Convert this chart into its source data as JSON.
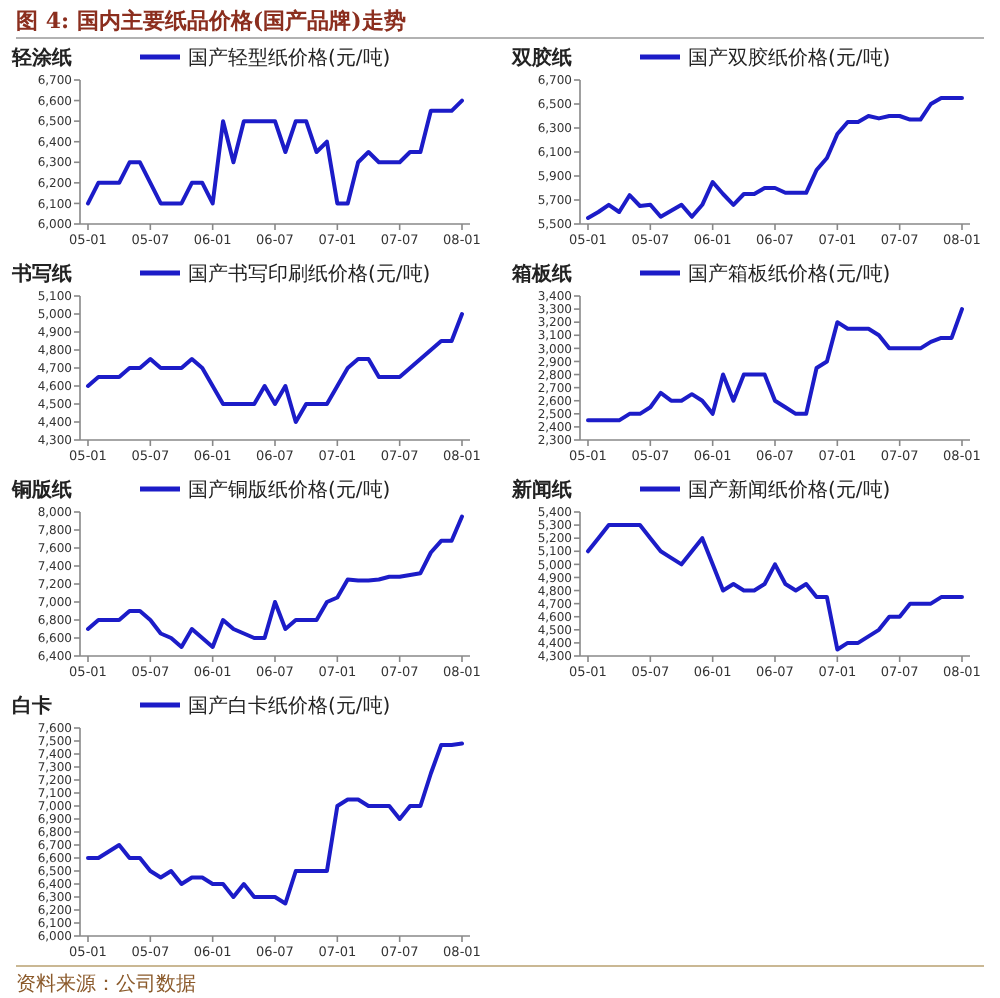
{
  "chart_data": [
    {
      "type": "other",
      "title": "图 4: 国内主要纸品价格(国产品牌)走势",
      "annotations": [
        "资料来源：公司数据"
      ]
    },
    {
      "type": "line",
      "title": "轻涂纸",
      "legend": "top",
      "categories": [
        "05-01",
        null,
        null,
        null,
        null,
        null,
        "05-07",
        null,
        null,
        null,
        null,
        null,
        "06-01",
        null,
        null,
        null,
        null,
        null,
        "06-07",
        null,
        null,
        null,
        null,
        null,
        "07-01",
        null,
        null,
        null,
        null,
        null,
        "07-07",
        null,
        null,
        null,
        null,
        null,
        "08-01"
      ],
      "series": [
        {
          "name": "国产轻型纸价格(元/吨)",
          "color": "#1c1cc8",
          "values": [
            6100,
            6200,
            6200,
            6200,
            6300,
            6300,
            6200,
            6100,
            6100,
            6100,
            6200,
            6200,
            6100,
            6500,
            6300,
            6500,
            6500,
            6500,
            6500,
            6350,
            6500,
            6500,
            6350,
            6400,
            6100,
            6100,
            6300,
            6350,
            6300,
            6300,
            6300,
            6350,
            6350,
            6550,
            6550,
            6550,
            6600
          ]
        }
      ],
      "ylim": [
        6000,
        6700
      ],
      "yticks": [
        {
          "value": 6000,
          "label": "6,000"
        },
        {
          "value": 6100,
          "label": "6,100"
        },
        {
          "value": 6200,
          "label": "6,200"
        },
        {
          "value": 6300,
          "label": "6,300"
        },
        {
          "value": 6400,
          "label": "6,400"
        },
        {
          "value": 6500,
          "label": "6,500"
        },
        {
          "value": 6600,
          "label": "6,600"
        },
        {
          "value": 6700,
          "label": "6,700"
        }
      ]
    },
    {
      "type": "line",
      "title": "双胶纸",
      "legend": "top",
      "categories": [
        "05-01",
        null,
        null,
        null,
        null,
        null,
        "05-07",
        null,
        null,
        null,
        null,
        null,
        "06-01",
        null,
        null,
        null,
        null,
        null,
        "06-07",
        null,
        null,
        null,
        null,
        null,
        "07-01",
        null,
        null,
        null,
        null,
        null,
        "07-07",
        null,
        null,
        null,
        null,
        null,
        "08-01"
      ],
      "series": [
        {
          "name": "国产双胶纸价格(元/吨)",
          "color": "#1c1cc8",
          "values": [
            5550,
            5600,
            5660,
            5600,
            5740,
            5650,
            5660,
            5560,
            5610,
            5660,
            5560,
            5660,
            5850,
            5750,
            5660,
            5750,
            5750,
            5800,
            5800,
            5760,
            5760,
            5760,
            5950,
            6050,
            6250,
            6350,
            6350,
            6400,
            6380,
            6400,
            6400,
            6370,
            6370,
            6500,
            6550,
            6550,
            6550
          ]
        }
      ],
      "ylim": [
        5500,
        6700
      ],
      "yticks": [
        {
          "value": 5500,
          "label": "5,500"
        },
        {
          "value": 5700,
          "label": "5,700"
        },
        {
          "value": 5900,
          "label": "5,900"
        },
        {
          "value": 6100,
          "label": "6,100"
        },
        {
          "value": 6300,
          "label": "6,300"
        },
        {
          "value": 6500,
          "label": "6,500"
        },
        {
          "value": 6700,
          "label": "6,700"
        }
      ]
    },
    {
      "type": "line",
      "title": "书写纸",
      "legend": "top",
      "categories": [
        "05-01",
        null,
        null,
        null,
        null,
        null,
        "05-07",
        null,
        null,
        null,
        null,
        null,
        "06-01",
        null,
        null,
        null,
        null,
        null,
        "06-07",
        null,
        null,
        null,
        null,
        null,
        "07-01",
        null,
        null,
        null,
        null,
        null,
        "07-07",
        null,
        null,
        null,
        null,
        null,
        "08-01"
      ],
      "series": [
        {
          "name": "国产书写印刷纸价格(元/吨)",
          "color": "#1c1cc8",
          "values": [
            4600,
            4650,
            4650,
            4650,
            4700,
            4700,
            4750,
            4700,
            4700,
            4700,
            4750,
            4700,
            4600,
            4500,
            4500,
            4500,
            4500,
            4600,
            4500,
            4600,
            4400,
            4500,
            4500,
            4500,
            4600,
            4700,
            4750,
            4750,
            4650,
            4650,
            4650,
            4700,
            4750,
            4800,
            4850,
            4850,
            5000
          ]
        }
      ],
      "ylim": [
        4300,
        5100
      ],
      "yticks": [
        {
          "value": 4300,
          "label": "4,300"
        },
        {
          "value": 4400,
          "label": "4,400"
        },
        {
          "value": 4500,
          "label": "4,500"
        },
        {
          "value": 4600,
          "label": "4,600"
        },
        {
          "value": 4700,
          "label": "4,700"
        },
        {
          "value": 4800,
          "label": "4,800"
        },
        {
          "value": 4900,
          "label": "4,900"
        },
        {
          "value": 5000,
          "label": "5,000"
        },
        {
          "value": 5100,
          "label": "5,100"
        }
      ]
    },
    {
      "type": "line",
      "title": "箱板纸",
      "legend": "top",
      "categories": [
        "05-01",
        null,
        null,
        null,
        null,
        null,
        "05-07",
        null,
        null,
        null,
        null,
        null,
        "06-01",
        null,
        null,
        null,
        null,
        null,
        "06-07",
        null,
        null,
        null,
        null,
        null,
        "07-01",
        null,
        null,
        null,
        null,
        null,
        "07-07",
        null,
        null,
        null,
        null,
        null,
        "08-01"
      ],
      "series": [
        {
          "name": "国产箱板纸价格(元/吨)",
          "color": "#1c1cc8",
          "values": [
            2450,
            2450,
            2450,
            2450,
            2500,
            2500,
            2550,
            2660,
            2600,
            2600,
            2650,
            2600,
            2500,
            2800,
            2600,
            2800,
            2800,
            2800,
            2600,
            2550,
            2500,
            2500,
            2850,
            2900,
            3200,
            3150,
            3150,
            3150,
            3100,
            3000,
            3000,
            3000,
            3000,
            3050,
            3080,
            3080,
            3300
          ]
        }
      ],
      "ylim": [
        2300,
        3400
      ],
      "yticks": [
        {
          "value": 2300,
          "label": "2,300"
        },
        {
          "value": 2400,
          "label": "2,400"
        },
        {
          "value": 2500,
          "label": "2,500"
        },
        {
          "value": 2600,
          "label": "2,600"
        },
        {
          "value": 2700,
          "label": "2,700"
        },
        {
          "value": 2800,
          "label": "2,800"
        },
        {
          "value": 2900,
          "label": "2,900"
        },
        {
          "value": 3000,
          "label": "3,000"
        },
        {
          "value": 3100,
          "label": "3,100"
        },
        {
          "value": 3200,
          "label": "3,200"
        },
        {
          "value": 3300,
          "label": "3,300"
        },
        {
          "value": 3400,
          "label": "3,400"
        }
      ]
    },
    {
      "type": "line",
      "title": "铜版纸",
      "legend": "top",
      "categories": [
        "05-01",
        null,
        null,
        null,
        null,
        null,
        "05-07",
        null,
        null,
        null,
        null,
        null,
        "06-01",
        null,
        null,
        null,
        null,
        null,
        "06-07",
        null,
        null,
        null,
        null,
        null,
        "07-01",
        null,
        null,
        null,
        null,
        null,
        "07-07",
        null,
        null,
        null,
        null,
        null,
        "08-01"
      ],
      "series": [
        {
          "name": "国产铜版纸价格(元/吨)",
          "color": "#1c1cc8",
          "values": [
            6700,
            6800,
            6800,
            6800,
            6900,
            6900,
            6800,
            6650,
            6600,
            6500,
            6700,
            6600,
            6500,
            6800,
            6700,
            6650,
            6600,
            6600,
            7000,
            6700,
            6800,
            6800,
            6800,
            7000,
            7050,
            7250,
            7240,
            7240,
            7250,
            7280,
            7280,
            7300,
            7320,
            7550,
            7680,
            7680,
            7950
          ]
        }
      ],
      "ylim": [
        6400,
        8000
      ],
      "yticks": [
        {
          "value": 6400,
          "label": "6,400"
        },
        {
          "value": 6600,
          "label": "6,600"
        },
        {
          "value": 6800,
          "label": "6,800"
        },
        {
          "value": 7000,
          "label": "7,000"
        },
        {
          "value": 7200,
          "label": "7,200"
        },
        {
          "value": 7400,
          "label": "7,400"
        },
        {
          "value": 7600,
          "label": "7,600"
        },
        {
          "value": 7800,
          "label": "7,800"
        },
        {
          "value": 8000,
          "label": "8,000"
        }
      ]
    },
    {
      "type": "line",
      "title": "新闻纸",
      "legend": "top",
      "categories": [
        "05-01",
        null,
        null,
        null,
        null,
        null,
        "05-07",
        null,
        null,
        null,
        null,
        null,
        "06-01",
        null,
        null,
        null,
        null,
        null,
        "06-07",
        null,
        null,
        null,
        null,
        null,
        "07-01",
        null,
        null,
        null,
        null,
        null,
        "07-07",
        null,
        null,
        null,
        null,
        null,
        "08-01"
      ],
      "series": [
        {
          "name": "国产新闻纸价格(元/吨)",
          "color": "#1c1cc8",
          "values": [
            5100,
            5200,
            5300,
            5300,
            5300,
            5300,
            5200,
            5100,
            5050,
            5000,
            5100,
            5200,
            5000,
            4800,
            4850,
            4800,
            4800,
            4850,
            5000,
            4850,
            4800,
            4850,
            4750,
            4750,
            4350,
            4400,
            4400,
            4450,
            4500,
            4600,
            4600,
            4700,
            4700,
            4700,
            4750,
            4750,
            4750
          ]
        }
      ],
      "ylim": [
        4300,
        5400
      ],
      "yticks": [
        {
          "value": 4300,
          "label": "4,300"
        },
        {
          "value": 4400,
          "label": "4,400"
        },
        {
          "value": 4500,
          "label": "4,500"
        },
        {
          "value": 4600,
          "label": "4,600"
        },
        {
          "value": 4700,
          "label": "4,700"
        },
        {
          "value": 4800,
          "label": "4,800"
        },
        {
          "value": 4900,
          "label": "4,900"
        },
        {
          "value": 5000,
          "label": "5,000"
        },
        {
          "value": 5100,
          "label": "5,100"
        },
        {
          "value": 5200,
          "label": "5,200"
        },
        {
          "value": 5300,
          "label": "5,300"
        },
        {
          "value": 5400,
          "label": "5,400"
        }
      ]
    },
    {
      "type": "line",
      "title": "白卡",
      "legend": "top",
      "categories": [
        "05-01",
        null,
        null,
        null,
        null,
        null,
        "05-07",
        null,
        null,
        null,
        null,
        null,
        "06-01",
        null,
        null,
        null,
        null,
        null,
        "06-07",
        null,
        null,
        null,
        null,
        null,
        "07-01",
        null,
        null,
        null,
        null,
        null,
        "07-07",
        null,
        null,
        null,
        null,
        null,
        "08-01"
      ],
      "series": [
        {
          "name": "国产白卡纸价格(元/吨)",
          "color": "#1c1cc8",
          "values": [
            6600,
            6600,
            6650,
            6700,
            6600,
            6600,
            6500,
            6450,
            6500,
            6400,
            6450,
            6450,
            6400,
            6400,
            6300,
            6400,
            6300,
            6300,
            6300,
            6250,
            6500,
            6500,
            6500,
            6500,
            7000,
            7050,
            7050,
            7000,
            7000,
            7000,
            6900,
            7000,
            7000,
            7250,
            7470,
            7470,
            7480
          ]
        }
      ],
      "ylim": [
        6000,
        7600
      ],
      "yticks": [
        {
          "value": 6000,
          "label": "6,000"
        },
        {
          "value": 6100,
          "label": "6,100"
        },
        {
          "value": 6200,
          "label": "6,200"
        },
        {
          "value": 6300,
          "label": "6,300"
        },
        {
          "value": 6400,
          "label": "6,400"
        },
        {
          "value": 6500,
          "label": "6,500"
        },
        {
          "value": 6600,
          "label": "6,600"
        },
        {
          "value": 6700,
          "label": "6,700"
        },
        {
          "value": 6800,
          "label": "6,800"
        },
        {
          "value": 6900,
          "label": "6,900"
        },
        {
          "value": 7000,
          "label": "7,000"
        },
        {
          "value": 7100,
          "label": "7,100"
        },
        {
          "value": 7200,
          "label": "7,200"
        },
        {
          "value": 7300,
          "label": "7,300"
        },
        {
          "value": 7400,
          "label": "7,400"
        },
        {
          "value": 7500,
          "label": "7,500"
        },
        {
          "value": 7600,
          "label": "7,600"
        }
      ]
    }
  ]
}
